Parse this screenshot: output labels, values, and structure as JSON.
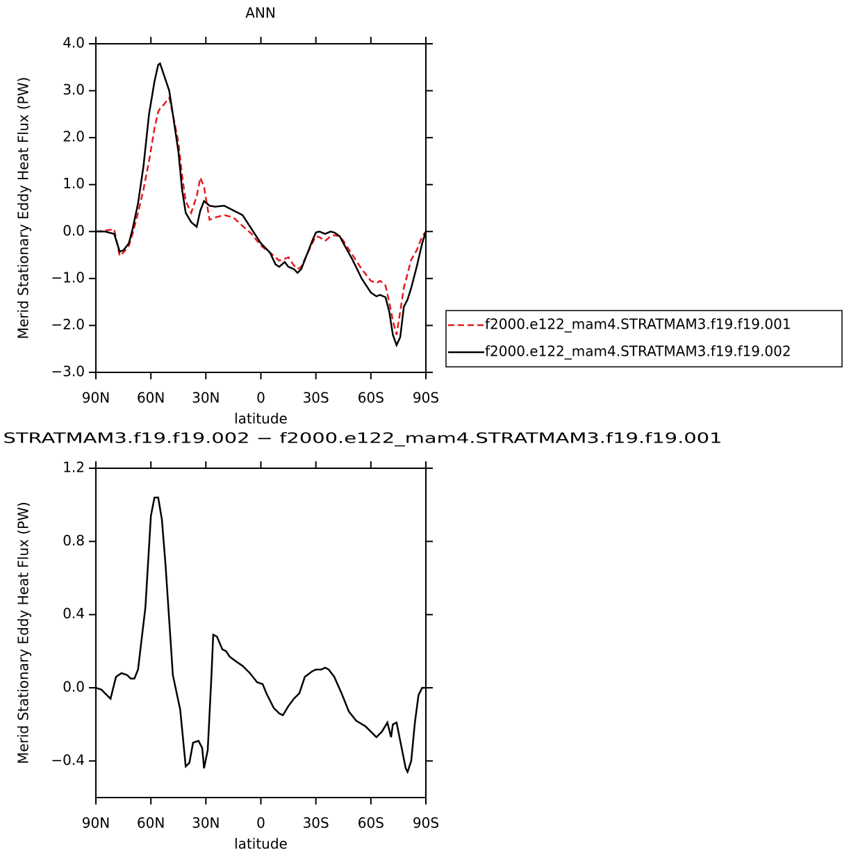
{
  "chart_data": [
    {
      "type": "line",
      "title": "ANN",
      "xlabel": "latitude",
      "ylabel": "Merid Stationary Eddy Heat Flux (PW)",
      "x": [
        90,
        85,
        80,
        77,
        75,
        72,
        70,
        67,
        64,
        61,
        58,
        56,
        55,
        53,
        50,
        48,
        45,
        43,
        41,
        38,
        35,
        33,
        31,
        28,
        25,
        20,
        15,
        10,
        5,
        0,
        -5,
        -8,
        -10,
        -13,
        -15,
        -18,
        -20,
        -22,
        -25,
        -28,
        -30,
        -32,
        -35,
        -38,
        -40,
        -43,
        -45,
        -50,
        -55,
        -60,
        -63,
        -65,
        -68,
        -70,
        -72,
        -74,
        -76,
        -78,
        -80,
        -82,
        -85,
        -88,
        -90
      ],
      "series": [
        {
          "name": "f2000.e122_mam4.STRATMAM3.f19.f19.001",
          "color": "#e31a1c",
          "dash": "dashed",
          "values": [
            0,
            0.02,
            0.05,
            -0.52,
            -0.45,
            -0.3,
            -0.05,
            0.4,
            0.9,
            1.5,
            2.2,
            2.55,
            2.62,
            2.7,
            2.85,
            2.5,
            1.9,
            1.2,
            0.65,
            0.4,
            0.75,
            1.15,
            0.95,
            0.25,
            0.3,
            0.35,
            0.3,
            0.12,
            -0.05,
            -0.3,
            -0.45,
            -0.55,
            -0.62,
            -0.58,
            -0.55,
            -0.72,
            -0.8,
            -0.75,
            -0.5,
            -0.25,
            -0.1,
            -0.12,
            -0.2,
            -0.1,
            -0.08,
            -0.1,
            -0.2,
            -0.5,
            -0.8,
            -1.05,
            -1.1,
            -1.05,
            -1.15,
            -1.5,
            -1.9,
            -2.2,
            -1.7,
            -1.2,
            -0.9,
            -0.6,
            -0.4,
            -0.1,
            0
          ]
        },
        {
          "name": "f2000.e122_mam4.STRATMAM3.f19.f19.002",
          "color": "#000000",
          "dash": "solid",
          "values": [
            0,
            0,
            -0.05,
            -0.43,
            -0.4,
            -0.25,
            0.05,
            0.6,
            1.4,
            2.5,
            3.2,
            3.55,
            3.58,
            3.35,
            3.0,
            2.5,
            1.7,
            0.9,
            0.4,
            0.2,
            0.1,
            0.45,
            0.65,
            0.55,
            0.53,
            0.55,
            0.45,
            0.35,
            0.05,
            -0.25,
            -0.45,
            -0.7,
            -0.75,
            -0.65,
            -0.75,
            -0.8,
            -0.88,
            -0.8,
            -0.5,
            -0.2,
            -0.02,
            0.0,
            -0.05,
            0.0,
            -0.02,
            -0.1,
            -0.25,
            -0.6,
            -1.0,
            -1.3,
            -1.38,
            -1.35,
            -1.4,
            -1.7,
            -2.2,
            -2.42,
            -2.25,
            -1.6,
            -1.45,
            -1.2,
            -0.75,
            -0.25,
            0
          ]
        }
      ],
      "xlim": [
        90,
        -90
      ],
      "xticks": [
        {
          "value": 90,
          "label": "90N"
        },
        {
          "value": 60,
          "label": "60N"
        },
        {
          "value": 30,
          "label": "30N"
        },
        0,
        {
          "value": -30,
          "label": "30S"
        },
        {
          "value": -60,
          "label": "60S"
        },
        {
          "value": -90,
          "label": "90S"
        }
      ],
      "ylim": [
        -3,
        4
      ],
      "yticks": [
        {
          "value": 4,
          "label": "4.0"
        },
        {
          "value": 3,
          "label": "3.0"
        },
        {
          "value": 2,
          "label": "2.0"
        },
        {
          "value": 1,
          "label": "1.0"
        },
        {
          "value": 0,
          "label": "0.0"
        },
        {
          "value": -1,
          "label": "−1.0"
        },
        {
          "value": -2,
          "label": "−2.0"
        },
        {
          "value": -3,
          "label": "−3.0"
        }
      ],
      "legend": "right"
    },
    {
      "type": "line",
      "title": "STRATMAM3.f19.f19.002 − f2000.e122_mam4.STRATMAM3.f19.f19.001",
      "xlabel": "latitude",
      "ylabel": "Merid Stationary Eddy Heat Flux (PW)",
      "x": [
        90,
        87,
        82,
        79,
        76,
        73,
        71,
        69,
        67,
        65,
        63,
        60,
        58,
        56,
        54,
        52,
        48,
        44,
        41,
        39,
        37,
        34,
        32,
        31,
        29,
        27,
        26,
        24,
        21,
        19,
        17,
        13,
        10,
        6,
        2,
        -1,
        -3,
        -7,
        -10,
        -12,
        -15,
        -18,
        -21,
        -24,
        -28,
        -30,
        -33,
        -35,
        -37,
        -40,
        -44,
        -48,
        -52,
        -57,
        -61,
        -63,
        -66,
        -69,
        -71,
        -72,
        -74,
        -77,
        -79,
        -80,
        -82,
        -84,
        -86,
        -88,
        -90
      ],
      "series": [
        {
          "color": "#000000",
          "dash": "solid",
          "values": [
            0,
            -0.01,
            -0.06,
            0.06,
            0.08,
            0.07,
            0.05,
            0.05,
            0.1,
            0.27,
            0.44,
            0.94,
            1.04,
            1.04,
            0.92,
            0.67,
            0.07,
            -0.12,
            -0.43,
            -0.41,
            -0.3,
            -0.29,
            -0.33,
            -0.44,
            -0.34,
            0.06,
            0.29,
            0.28,
            0.21,
            0.2,
            0.17,
            0.14,
            0.12,
            0.08,
            0.03,
            0.02,
            -0.03,
            -0.11,
            -0.14,
            -0.15,
            -0.1,
            -0.06,
            -0.03,
            0.06,
            0.09,
            0.1,
            0.1,
            0.11,
            0.1,
            0.06,
            -0.03,
            -0.13,
            -0.18,
            -0.21,
            -0.25,
            -0.27,
            -0.24,
            -0.19,
            -0.27,
            -0.2,
            -0.19,
            -0.34,
            -0.44,
            -0.46,
            -0.4,
            -0.19,
            -0.04,
            0,
            0
          ]
        }
      ],
      "xlim": [
        90,
        -90
      ],
      "xticks": [
        {
          "value": 90,
          "label": "90N"
        },
        {
          "value": 60,
          "label": "60N"
        },
        {
          "value": 30,
          "label": "30N"
        },
        0,
        {
          "value": -30,
          "label": "30S"
        },
        {
          "value": -60,
          "label": "60S"
        },
        {
          "value": -90,
          "label": "90S"
        }
      ],
      "ylim": [
        -0.6,
        1.2
      ],
      "yticks": [
        1.2,
        0.8,
        0.4,
        {
          "value": 0,
          "label": "0.0"
        },
        {
          "value": -0.4,
          "label": "−0.4"
        }
      ]
    }
  ]
}
